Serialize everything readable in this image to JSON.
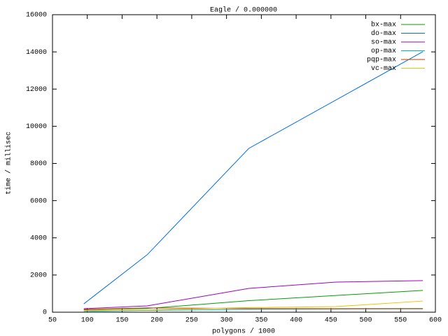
{
  "chart_data": {
    "type": "line",
    "title": "Eagle / 0.000000",
    "x_label": "polygons / 1000",
    "y_label": "time / millisec",
    "x": [
      95,
      186,
      332,
      457,
      582
    ],
    "series": [
      {
        "name": "bx-max",
        "color": "#00a000",
        "values": [
          130,
          200,
          620,
          900,
          1170
        ]
      },
      {
        "name": "do-max",
        "color": "#0070e0",
        "values": [
          450,
          3090,
          8810,
          11410,
          14010
        ]
      },
      {
        "name": "so-max",
        "color": "#a000c0",
        "values": [
          190,
          340,
          1280,
          1620,
          1700
        ]
      },
      {
        "name": "op-max",
        "color": "#00b0c0",
        "values": [
          50,
          100,
          150,
          170,
          180
        ]
      },
      {
        "name": "pqp-max",
        "color": "#c04000",
        "values": [
          150,
          230,
          200,
          190,
          200
        ]
      },
      {
        "name": "vc-max",
        "color": "#f0c000",
        "values": [
          80,
          120,
          250,
          300,
          600
        ]
      }
    ],
    "xlim": [
      50,
      600
    ],
    "xticks": [
      50,
      100,
      150,
      200,
      250,
      300,
      350,
      400,
      450,
      500,
      550,
      600
    ],
    "ylim": [
      0,
      16000
    ],
    "yticks": [
      0,
      2000,
      4000,
      6000,
      8000,
      10000,
      12000,
      14000,
      16000
    ],
    "legend": "top-right"
  }
}
